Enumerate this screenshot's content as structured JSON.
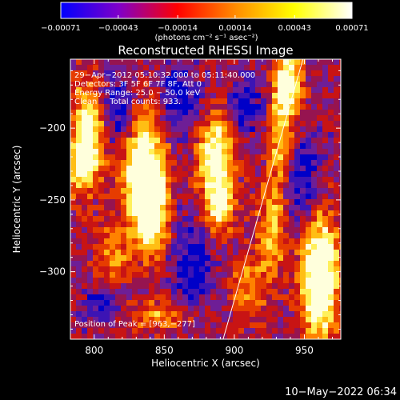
{
  "chart_data": {
    "type": "heatmap",
    "title": "Reconstructed RHESSI Image",
    "xlabel": "Heliocentric X (arcsec)",
    "ylabel": "Heliocentric Y (arcsec)",
    "xlim": [
      783,
      976
    ],
    "ylim": [
      -347,
      -152
    ],
    "x_ticks": [
      800,
      850,
      900,
      950
    ],
    "y_ticks": [
      -300,
      -250,
      -200
    ],
    "x_tick_labels": [
      "800",
      "850",
      "900",
      "950"
    ],
    "y_tick_labels": [
      "−300",
      "−250",
      "−200"
    ],
    "colorbar": {
      "min": -0.00071,
      "max": 0.00071,
      "ticks": [
        -0.00071,
        -0.00043,
        -0.00014,
        0.00014,
        0.00043,
        0.00071
      ],
      "tick_labels": [
        "−0.00071",
        "−0.00043",
        "−0.00014",
        "0.00014",
        "0.00043",
        "0.00071"
      ],
      "unit_label": "(photons cm⁻² s⁻¹ asec⁻²)",
      "colormap": [
        "#0000ff",
        "#8000c8",
        "#ff0000",
        "#ff8c00",
        "#ffff00",
        "#ffffff"
      ]
    },
    "annotations": [
      "29−Apr−2012 05:10:32.000 to 05:11:40.000",
      "Detectors: 3F 5F 6F 7F 8F, Att 0",
      "Energy Range: 25.0 − 50.0 keV",
      "Clean     Total counts: 933."
    ],
    "peak_label": "Position of Peak = [963,−277]",
    "peak": [
      963,
      -277
    ],
    "limb_line": [
      [
        892,
        -347
      ],
      [
        949,
        -152
      ]
    ]
  },
  "footer": {
    "date": "10−May−2022 06:34"
  }
}
